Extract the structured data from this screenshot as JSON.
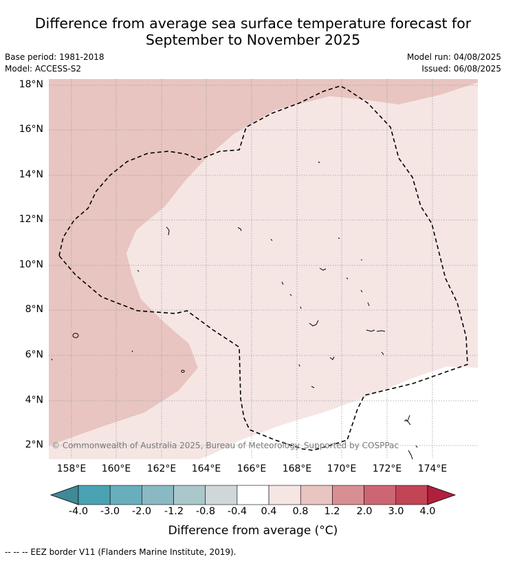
{
  "title_line1": "Difference from average sea surface temperature forecast for",
  "title_line2": "September to November 2025",
  "meta": {
    "base_period": "Base period: 1981-2018",
    "model": "Model: ACCESS-S2",
    "model_run": "Model run: 04/08/2025",
    "issued": "Issued: 06/08/2025"
  },
  "lat_labels": [
    "18°N",
    "16°N",
    "14°N",
    "12°N",
    "10°N",
    "8°N",
    "6°N",
    "4°N",
    "2°N"
  ],
  "lon_labels": [
    "158°E",
    "160°E",
    "162°E",
    "164°E",
    "166°E",
    "168°E",
    "170°E",
    "172°E",
    "174°E"
  ],
  "copyright": "© Commonwealth of Australia 2025, Bureau of Meteorology. Supported by COSPPac",
  "colorbar": {
    "ticks": [
      "-4.0",
      "-3.0",
      "-2.0",
      "-1.2",
      "-0.8",
      "-0.4",
      "0.4",
      "0.8",
      "1.2",
      "2.0",
      "3.0",
      "4.0"
    ],
    "colors": [
      "#4aa2b3",
      "#68aebd",
      "#8ab9c3",
      "#aac7cb",
      "#d0d7d9",
      "#ffffff",
      "#f5e6e4",
      "#e8c5c1",
      "#d98e93",
      "#cc6672",
      "#c24455"
    ],
    "low_color": "#3f8a96",
    "high_color": "#b21f3d",
    "title": "Difference from average (°C)"
  },
  "footnote": "--  --  -- EEZ border V11 (Flanders Marine Institute, 2019)."
}
